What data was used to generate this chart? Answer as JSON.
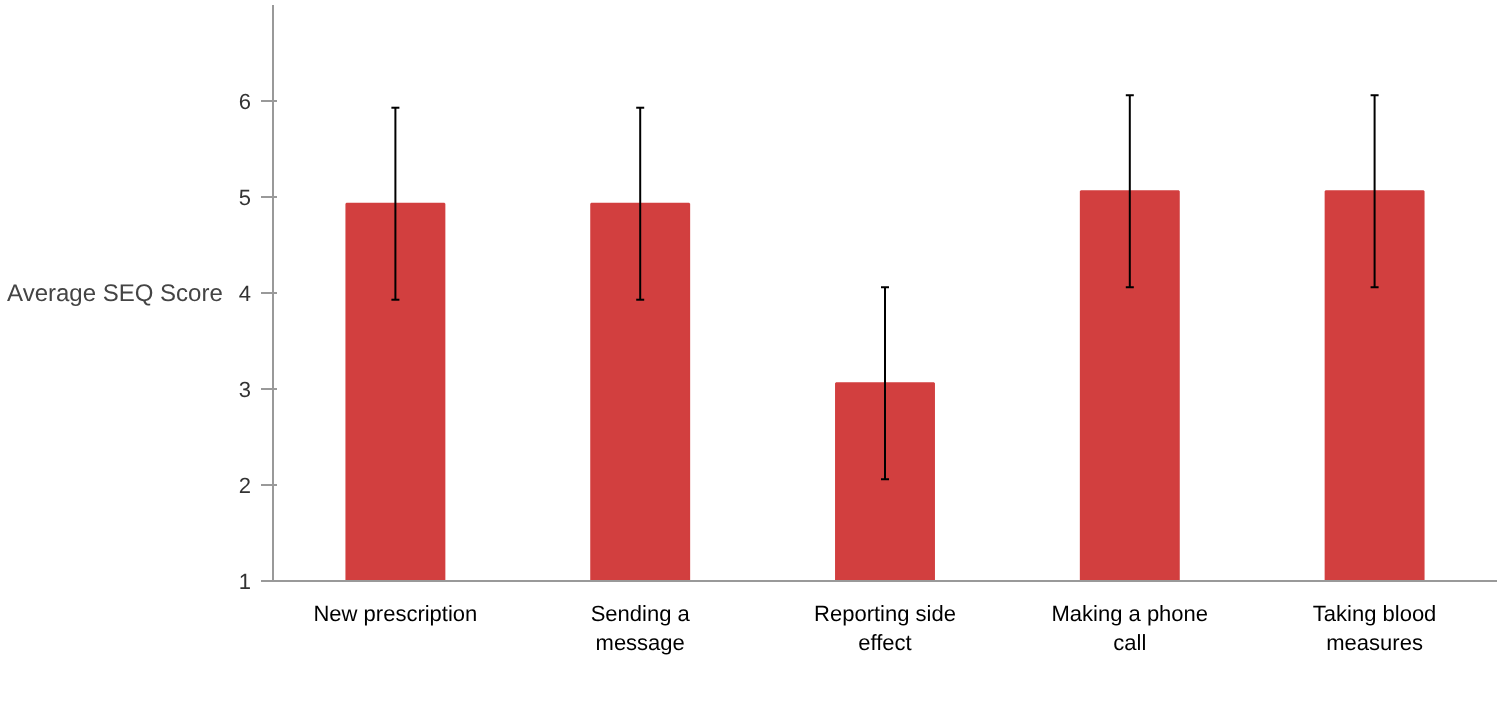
{
  "chart_data": {
    "type": "bar",
    "ylabel": "Average SEQ Score",
    "categories": [
      "New prescription",
      "Sending a message",
      "Reporting side effect",
      "Making a phone call",
      "Taking blood measures"
    ],
    "values": [
      4.93,
      4.93,
      3.06,
      5.06,
      5.06
    ],
    "errors": [
      1,
      1,
      1,
      1,
      1
    ],
    "color": "#d23f3f",
    "ylim": [
      1,
      7
    ],
    "yticks": [
      1,
      2,
      3,
      4,
      5,
      6
    ],
    "grid": false
  }
}
